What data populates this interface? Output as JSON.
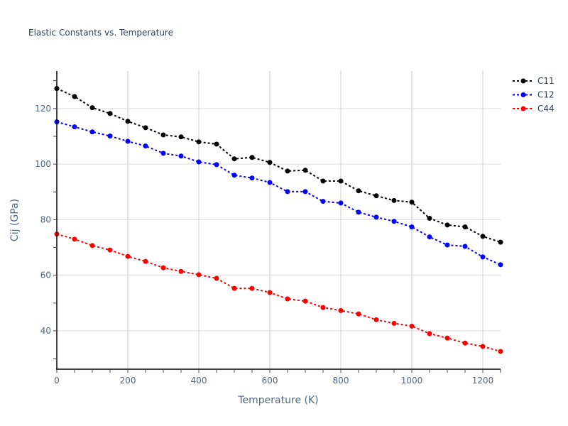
{
  "chart_data": {
    "type": "line",
    "title": "Elastic Constants vs. Temperature",
    "xlabel": "Temperature (K)",
    "ylabel": "Cij (GPa)",
    "xlim": [
      0,
      1250
    ],
    "ylim": [
      26.2,
      133.5
    ],
    "grid": true,
    "legend_position": "top-right",
    "x_ticks": [
      0,
      200,
      400,
      600,
      800,
      1000,
      1200
    ],
    "y_ticks": [
      40,
      60,
      80,
      100,
      120
    ],
    "x": [
      0,
      50,
      100,
      150,
      200,
      250,
      300,
      350,
      400,
      450,
      500,
      550,
      600,
      650,
      700,
      750,
      800,
      850,
      900,
      950,
      1000,
      1050,
      1100,
      1150,
      1200,
      1250
    ],
    "series": [
      {
        "name": "C11",
        "color": "#000000",
        "values": [
          127.2,
          124.3,
          120.3,
          118.2,
          115.4,
          113.1,
          110.5,
          109.8,
          108.0,
          107.2,
          101.9,
          102.4,
          100.6,
          97.5,
          97.8,
          93.9,
          93.9,
          90.4,
          88.6,
          86.9,
          86.3,
          80.5,
          78.1,
          77.4,
          74.0,
          71.9
        ]
      },
      {
        "name": "C12",
        "color": "#0000ff",
        "values": [
          115.2,
          113.4,
          111.6,
          110.1,
          108.2,
          106.5,
          103.9,
          102.9,
          100.8,
          99.8,
          96.0,
          95.0,
          93.4,
          90.1,
          90.1,
          86.6,
          86.0,
          82.7,
          80.9,
          79.4,
          77.4,
          73.8,
          70.9,
          70.4,
          66.6,
          63.8
        ]
      },
      {
        "name": "C44",
        "color": "#ff0000",
        "values": [
          74.8,
          73.0,
          70.7,
          69.1,
          66.8,
          65.0,
          62.7,
          61.4,
          60.2,
          58.9,
          55.3,
          55.3,
          53.8,
          51.5,
          50.7,
          48.4,
          47.3,
          46.1,
          44.0,
          42.7,
          41.7,
          39.0,
          37.4,
          35.6,
          34.4,
          32.6
        ]
      }
    ]
  }
}
